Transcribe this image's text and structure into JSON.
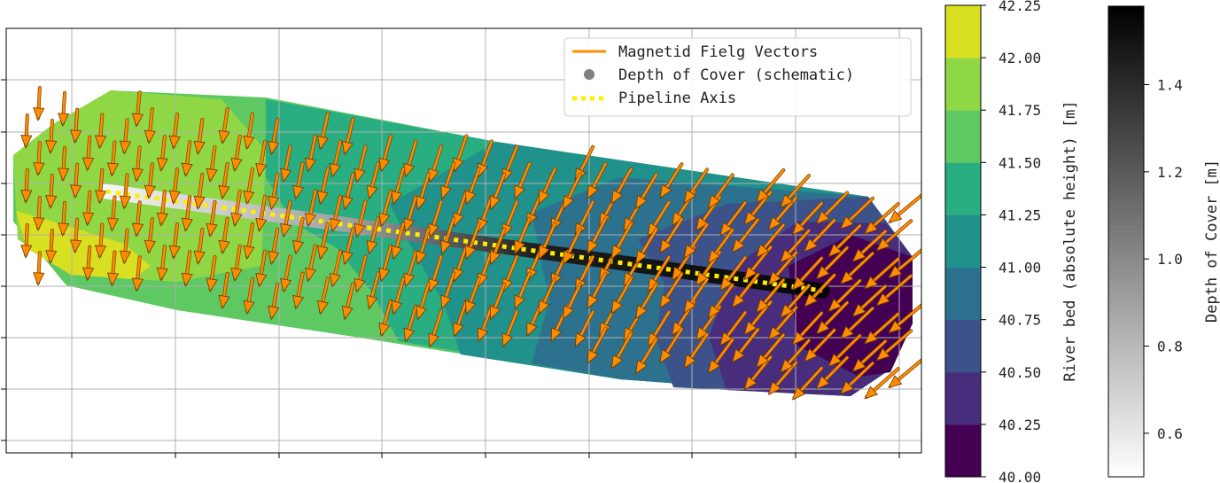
{
  "chart_data": {
    "type": "contour_quiver",
    "title": "",
    "xlabel": "",
    "ylabel": "",
    "grid": true,
    "legend": {
      "placement": "top-right",
      "entries": [
        {
          "label": "Magnetid Fielg Vectors",
          "marker": "line",
          "color": "#ff8c00"
        },
        {
          "label": "Depth of Cover (schematic)",
          "marker": "circle",
          "color": "#808080"
        },
        {
          "label": "Pipeline Axis",
          "marker": "dotted-line",
          "color": "#ffee00"
        }
      ]
    },
    "contour_colorbar": {
      "label": "River bed (absolute height) [m]",
      "min": 40.0,
      "max": 42.25,
      "ticks": [
        "40.00",
        "40.25",
        "40.50",
        "40.75",
        "41.00",
        "41.25",
        "41.50",
        "41.75",
        "42.00",
        "42.25"
      ],
      "level_colors": [
        "#440154",
        "#472d7b",
        "#3b528b",
        "#2c728e",
        "#21918c",
        "#28ae80",
        "#5ec962",
        "#8fd744",
        "#d9e021"
      ],
      "colormap": "viridis"
    },
    "depth_colorbar": {
      "label": "Depth of Cover [m]",
      "min": 0.5,
      "max": 1.58,
      "ticks": [
        "0.6",
        "0.8",
        "1.0",
        "1.2",
        "1.4"
      ],
      "colormap": "greys"
    },
    "pipeline": {
      "start_depth": 0.55,
      "end_depth": 1.55
    },
    "colors": {
      "vector": "#ff8c00",
      "pipeline_axis": "#ffee00",
      "grid": "#b0b0b0",
      "frame": "#000000"
    }
  }
}
